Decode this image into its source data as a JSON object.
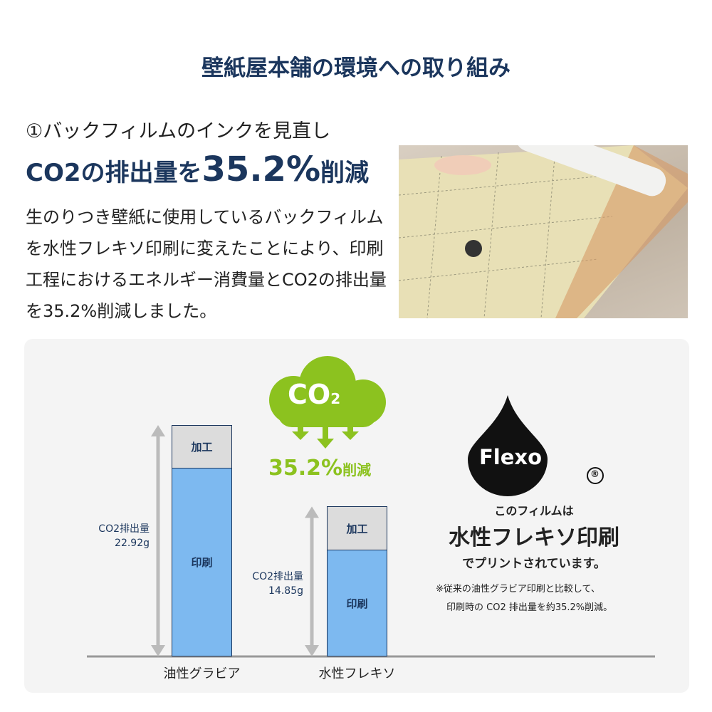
{
  "title": "壁紙屋本舗の環境への取り組み",
  "subtitle1": "①バックフィルムのインクを見直し",
  "subtitle2": {
    "pre": "CO2の排出量を",
    "big": "35.2%",
    "post": "削減"
  },
  "body": "生のりつき壁紙に使用しているバックフィルムを水性フレキソ印刷に変えたことにより、印刷工程におけるエネルギー消費量とCO2の排出量を35.2%削減しました。",
  "cloud": {
    "label": "CO",
    "sub": "2",
    "reduction": "35.2%",
    "reduction_suffix": "削減",
    "color": "#8cc21f"
  },
  "flexo": {
    "logo": "Flexo",
    "registered": "®",
    "line1": "このフィルムは",
    "line2": "水性フレキソ印刷",
    "line3": "でプリントされています。",
    "note1": "※従来の油性グラビア印刷と比較して、",
    "note2": "印刷時の CO2 排出量を約35.2%削減。"
  },
  "chart_data": {
    "type": "bar",
    "stacked": true,
    "categories": [
      "油性グラビア",
      "水性フレキソ"
    ],
    "series": [
      {
        "name": "印刷",
        "values": [
          18.7,
          10.5
        ],
        "color": "#7db9f0"
      },
      {
        "name": "加工",
        "values": [
          4.2,
          4.3
        ],
        "color": "#dcdcdc"
      }
    ],
    "totals": [
      22.92,
      14.85
    ],
    "total_labels": [
      {
        "label": "CO2排出量",
        "value": "22.92g"
      },
      {
        "label": "CO2排出量",
        "value": "14.85g"
      }
    ]
  }
}
